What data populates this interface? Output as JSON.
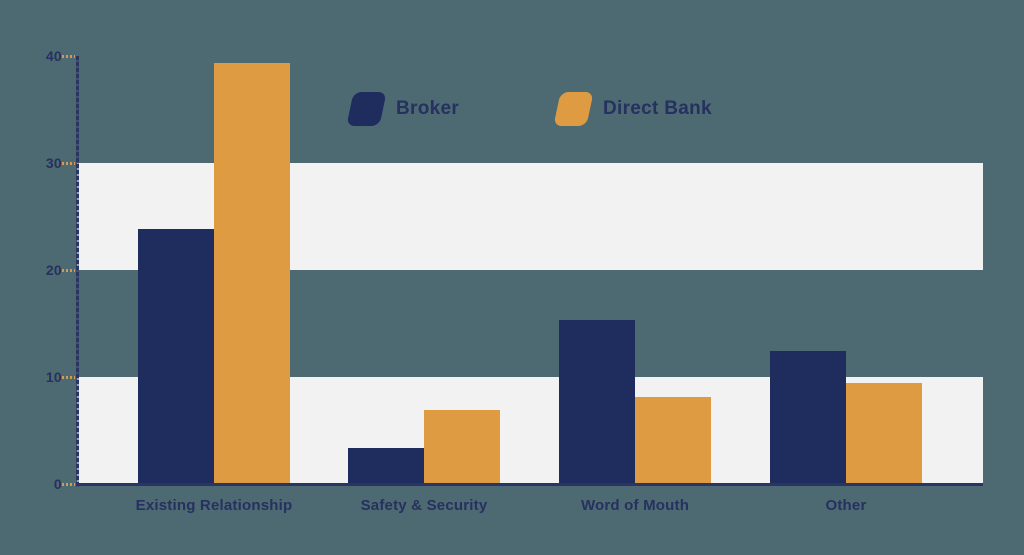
{
  "background_color": "#4d6972",
  "chart_data": {
    "type": "bar",
    "title": "",
    "xlabel": "",
    "ylabel": "",
    "categories": [
      "Existing Relationship",
      "Safety & Security",
      "Word of Mouth",
      "Other"
    ],
    "series": [
      {
        "name": "Broker",
        "color": "#1f2c5e",
        "values": [
          23.8,
          3.4,
          15.3,
          12.4
        ]
      },
      {
        "name": "Direct Bank",
        "color": "#df9b42",
        "values": [
          39.3,
          6.9,
          8.1,
          9.4
        ]
      }
    ],
    "ylim": [
      0,
      40
    ],
    "yticks": [
      0,
      10,
      20,
      30,
      40
    ],
    "grid": "striped-bands",
    "striped_bands": [
      [
        0,
        10
      ],
      [
        20,
        30
      ]
    ],
    "band_color": "#f2f2f3",
    "axis_color": "#2b3564",
    "tick_color": "#d59a52",
    "label_color": "#26315f",
    "legend_position": "top-center",
    "legend_items": [
      "Broker",
      "Direct Bank"
    ]
  }
}
